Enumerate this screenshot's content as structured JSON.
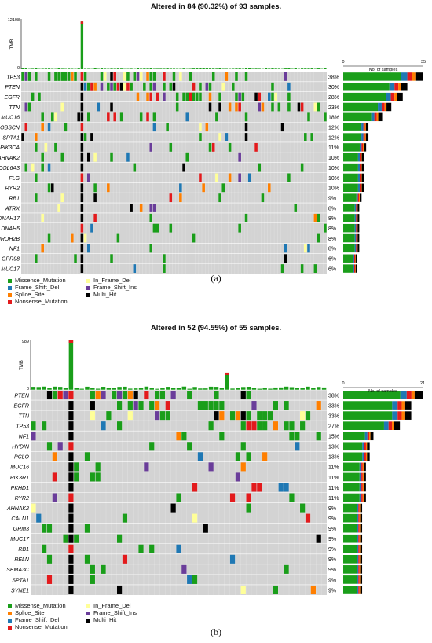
{
  "colors": {
    "Missense_Mutation": "#1a9e1a",
    "Frame_Shift_Del": "#1f78b4",
    "Splice_Site": "#ff7f00",
    "Nonsense_Mutation": "#e31a1c",
    "In_Frame_Del": "#ffff99",
    "Frame_Shift_Ins": "#6a3d9a",
    "Multi_Hit": "#000000",
    "background": "#d3d3d3"
  },
  "chart_data": [
    {
      "type": "heatmap",
      "title": "Altered in 84 (90.32%) of 93 samples.",
      "panel_label": "(a)",
      "tmb_label": "TMB",
      "tmb_ticks": [
        "12108",
        "0"
      ],
      "n_samples": 93,
      "bar_axis_label": "No. of samples",
      "bar_ticks": [
        "0",
        "35"
      ],
      "bar_max": 35,
      "genes": [
        {
          "name": "TP53",
          "pct": "38%",
          "count": 35
        },
        {
          "name": "PTEN",
          "pct": "30%",
          "count": 28
        },
        {
          "name": "EGFR",
          "pct": "28%",
          "count": 26
        },
        {
          "name": "TTN",
          "pct": "23%",
          "count": 21
        },
        {
          "name": "MUC16",
          "pct": "18%",
          "count": 17
        },
        {
          "name": "OBSCN",
          "pct": "12%",
          "count": 11
        },
        {
          "name": "SPTA1",
          "pct": "12%",
          "count": 11
        },
        {
          "name": "PIK3CA",
          "pct": "11%",
          "count": 10
        },
        {
          "name": "AHNAK2",
          "pct": "10%",
          "count": 9
        },
        {
          "name": "COL6A3",
          "pct": "10%",
          "count": 9
        },
        {
          "name": "FLG",
          "pct": "10%",
          "count": 9
        },
        {
          "name": "RYR2",
          "pct": "10%",
          "count": 9
        },
        {
          "name": "RB1",
          "pct": "9%",
          "count": 8
        },
        {
          "name": "ATRX",
          "pct": "8%",
          "count": 7
        },
        {
          "name": "DNAH17",
          "pct": "8%",
          "count": 7
        },
        {
          "name": "DNAH5",
          "pct": "8%",
          "count": 7
        },
        {
          "name": "MROH2B",
          "pct": "8%",
          "count": 7
        },
        {
          "name": "NF1",
          "pct": "8%",
          "count": 7
        },
        {
          "name": "GPR98",
          "pct": "6%",
          "count": 6
        },
        {
          "name": "MUC17",
          "pct": "6%",
          "count": 6
        }
      ],
      "legend": [
        "Missense_Mutation",
        "In_Frame_Del",
        "Frame_Shift_Del",
        "Frame_Shift_Ins",
        "Splice_Site",
        "Multi_Hit",
        "Nonsense_Mutation"
      ]
    },
    {
      "type": "heatmap",
      "title": "Altered in 52 (94.55%) of 55 samples.",
      "panel_label": "(b)",
      "tmb_label": "TMB",
      "tmb_ticks": [
        "989",
        "0"
      ],
      "n_samples": 55,
      "bar_axis_label": "No. of samples",
      "bar_ticks": [
        "0",
        "21"
      ],
      "bar_max": 21,
      "genes": [
        {
          "name": "PTEN",
          "pct": "38%",
          "count": 21
        },
        {
          "name": "EGFR",
          "pct": "33%",
          "count": 18
        },
        {
          "name": "TTN",
          "pct": "33%",
          "count": 18
        },
        {
          "name": "TP53",
          "pct": "27%",
          "count": 15
        },
        {
          "name": "NF1",
          "pct": "15%",
          "count": 8
        },
        {
          "name": "HYDIN",
          "pct": "13%",
          "count": 7
        },
        {
          "name": "PCLO",
          "pct": "13%",
          "count": 7
        },
        {
          "name": "MUC16",
          "pct": "11%",
          "count": 6
        },
        {
          "name": "PIK3R1",
          "pct": "11%",
          "count": 6
        },
        {
          "name": "PKHD1",
          "pct": "11%",
          "count": 6
        },
        {
          "name": "RYR2",
          "pct": "11%",
          "count": 6
        },
        {
          "name": "AHNAK2",
          "pct": "9%",
          "count": 5
        },
        {
          "name": "CALN1",
          "pct": "9%",
          "count": 5
        },
        {
          "name": "GRM3",
          "pct": "9%",
          "count": 5
        },
        {
          "name": "MUC17",
          "pct": "9%",
          "count": 5
        },
        {
          "name": "RB1",
          "pct": "9%",
          "count": 5
        },
        {
          "name": "RELN",
          "pct": "9%",
          "count": 5
        },
        {
          "name": "SEMA3C",
          "pct": "9%",
          "count": 5
        },
        {
          "name": "SPTA1",
          "pct": "9%",
          "count": 5
        },
        {
          "name": "SYNE1",
          "pct": "9%",
          "count": 5
        }
      ],
      "legend": [
        "Missense_Mutation",
        "In_Frame_Del",
        "Splice_Site",
        "Frame_Shift_Ins",
        "Frame_Shift_Del",
        "Multi_Hit",
        "Nonsense_Mutation"
      ]
    }
  ]
}
